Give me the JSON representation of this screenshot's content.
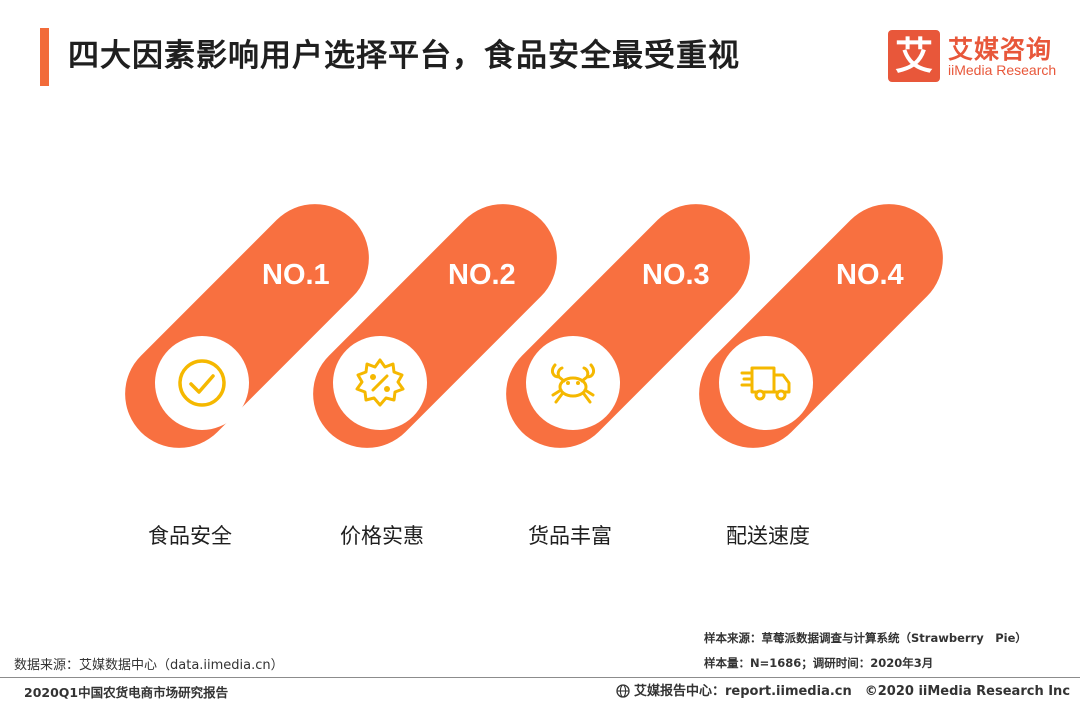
{
  "header": {
    "title": "四大因素影响用户选择平台，食品安全最受重视"
  },
  "logo": {
    "mark": "艾",
    "name_cn": "艾媒咨询",
    "name_en": "iiMedia Research"
  },
  "factors": [
    {
      "rank": "NO.1",
      "label": "食品安全",
      "icon": "check-circle-icon"
    },
    {
      "rank": "NO.2",
      "label": "价格实惠",
      "icon": "discount-badge-icon"
    },
    {
      "rank": "NO.3",
      "label": "货品丰富",
      "icon": "crab-icon"
    },
    {
      "rank": "NO.4",
      "label": "配送速度",
      "icon": "delivery-truck-icon"
    }
  ],
  "footer": {
    "sample_source": "样本来源：草莓派数据调查与计算系统（Strawberry　Pie）",
    "sample_size": "样本量：N=1686；调研时间：2020年3月",
    "data_source": "数据来源：艾媒数据中心（data.iimedia.cn）",
    "report_name": "2020Q1中国农货电商市场研究报告",
    "report_center": "艾媒报告中心：report.iimedia.cn　©2020  iiMedia Research  Inc"
  },
  "colors": {
    "accent": "#f26b3a",
    "pill": "#f87040",
    "icon": "#f5b800",
    "brand": "#e8573a"
  }
}
